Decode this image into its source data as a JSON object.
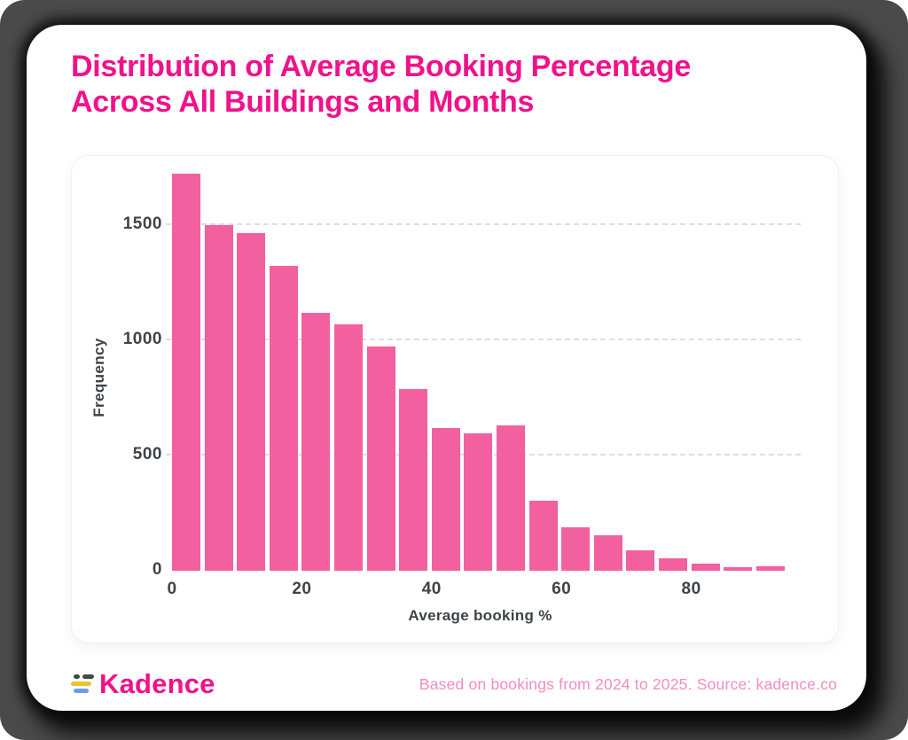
{
  "header": {
    "title_line1": "Distribution of Average Booking Percentage",
    "title_line2": "Across All Buildings and Months"
  },
  "chart_data": {
    "type": "bar",
    "subtype": "histogram",
    "title": "Distribution of Average Booking Percentage Across All Buildings and Months",
    "xlabel": "Average booking %",
    "ylabel": "Frequency",
    "bin_width": 5,
    "bin_edges": [
      0,
      5,
      10,
      15,
      20,
      25,
      30,
      35,
      40,
      45,
      50,
      55,
      60,
      65,
      70,
      75,
      80,
      85,
      90,
      95
    ],
    "frequencies": [
      1725,
      1500,
      1465,
      1325,
      1120,
      1070,
      975,
      790,
      620,
      595,
      630,
      305,
      190,
      155,
      88,
      55,
      30,
      17,
      19
    ],
    "x_ticks": [
      0,
      20,
      40,
      60,
      80
    ],
    "y_ticks": [
      0,
      500,
      1000,
      1500
    ],
    "xlim": [
      0,
      95
    ],
    "ylim": [
      0,
      1750
    ],
    "grid": "horizontal-dashed",
    "legend": "none",
    "bar_color": "#f2609f"
  },
  "footer": {
    "brand": "Kadence",
    "note": "Based on bookings from 2024 to 2025. Source: kadence.co"
  },
  "colors": {
    "title_pink": "#f0128a",
    "bar_pink": "#f2609f",
    "footer_pink": "#f48cbe",
    "axis_text": "#3d4449",
    "gridline": "#dedede",
    "frame_gray": "#4a4a4a",
    "card_white": "#ffffff",
    "logo_dark": "#3f4a4a",
    "logo_yellow": "#f0c030",
    "logo_blue": "#6e9bf0"
  }
}
